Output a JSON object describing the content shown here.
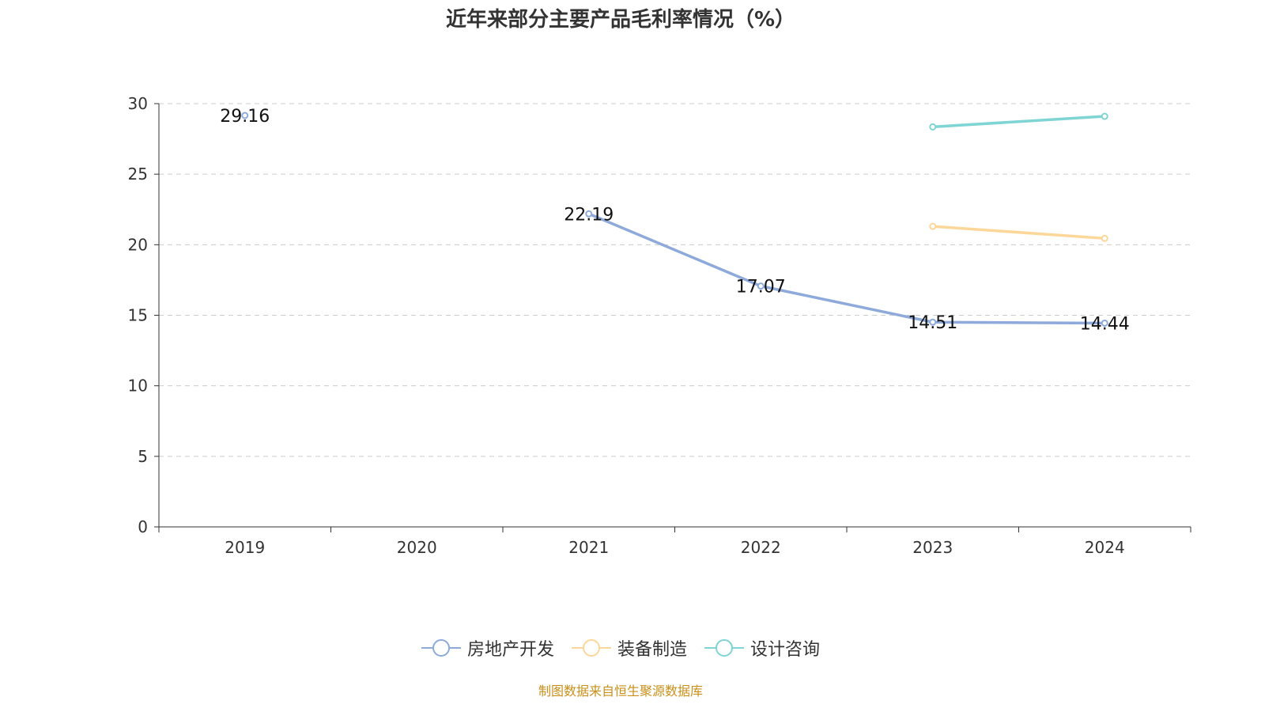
{
  "chart_data": {
    "type": "line",
    "title": "近年来部分主要产品毛利率情况（%）",
    "categories": [
      "2019",
      "2020",
      "2021",
      "2022",
      "2023",
      "2024"
    ],
    "ylim": [
      0,
      30
    ],
    "yticks": [
      0,
      5,
      10,
      15,
      20,
      25,
      30
    ],
    "grid": true,
    "legend_position": "bottom",
    "series": [
      {
        "name": "房地产开发",
        "color": "#8eaadb",
        "values": [
          29.16,
          null,
          22.19,
          17.07,
          14.51,
          14.44
        ],
        "labels": true
      },
      {
        "name": "装备制造",
        "color": "#fdd79a",
        "values": [
          null,
          null,
          null,
          null,
          21.3,
          20.45
        ],
        "labels": false
      },
      {
        "name": "设计咨询",
        "color": "#7fd4d4",
        "values": [
          null,
          null,
          null,
          null,
          28.35,
          29.1
        ],
        "labels": false
      }
    ]
  },
  "source": "制图数据来自恒生聚源数据库"
}
